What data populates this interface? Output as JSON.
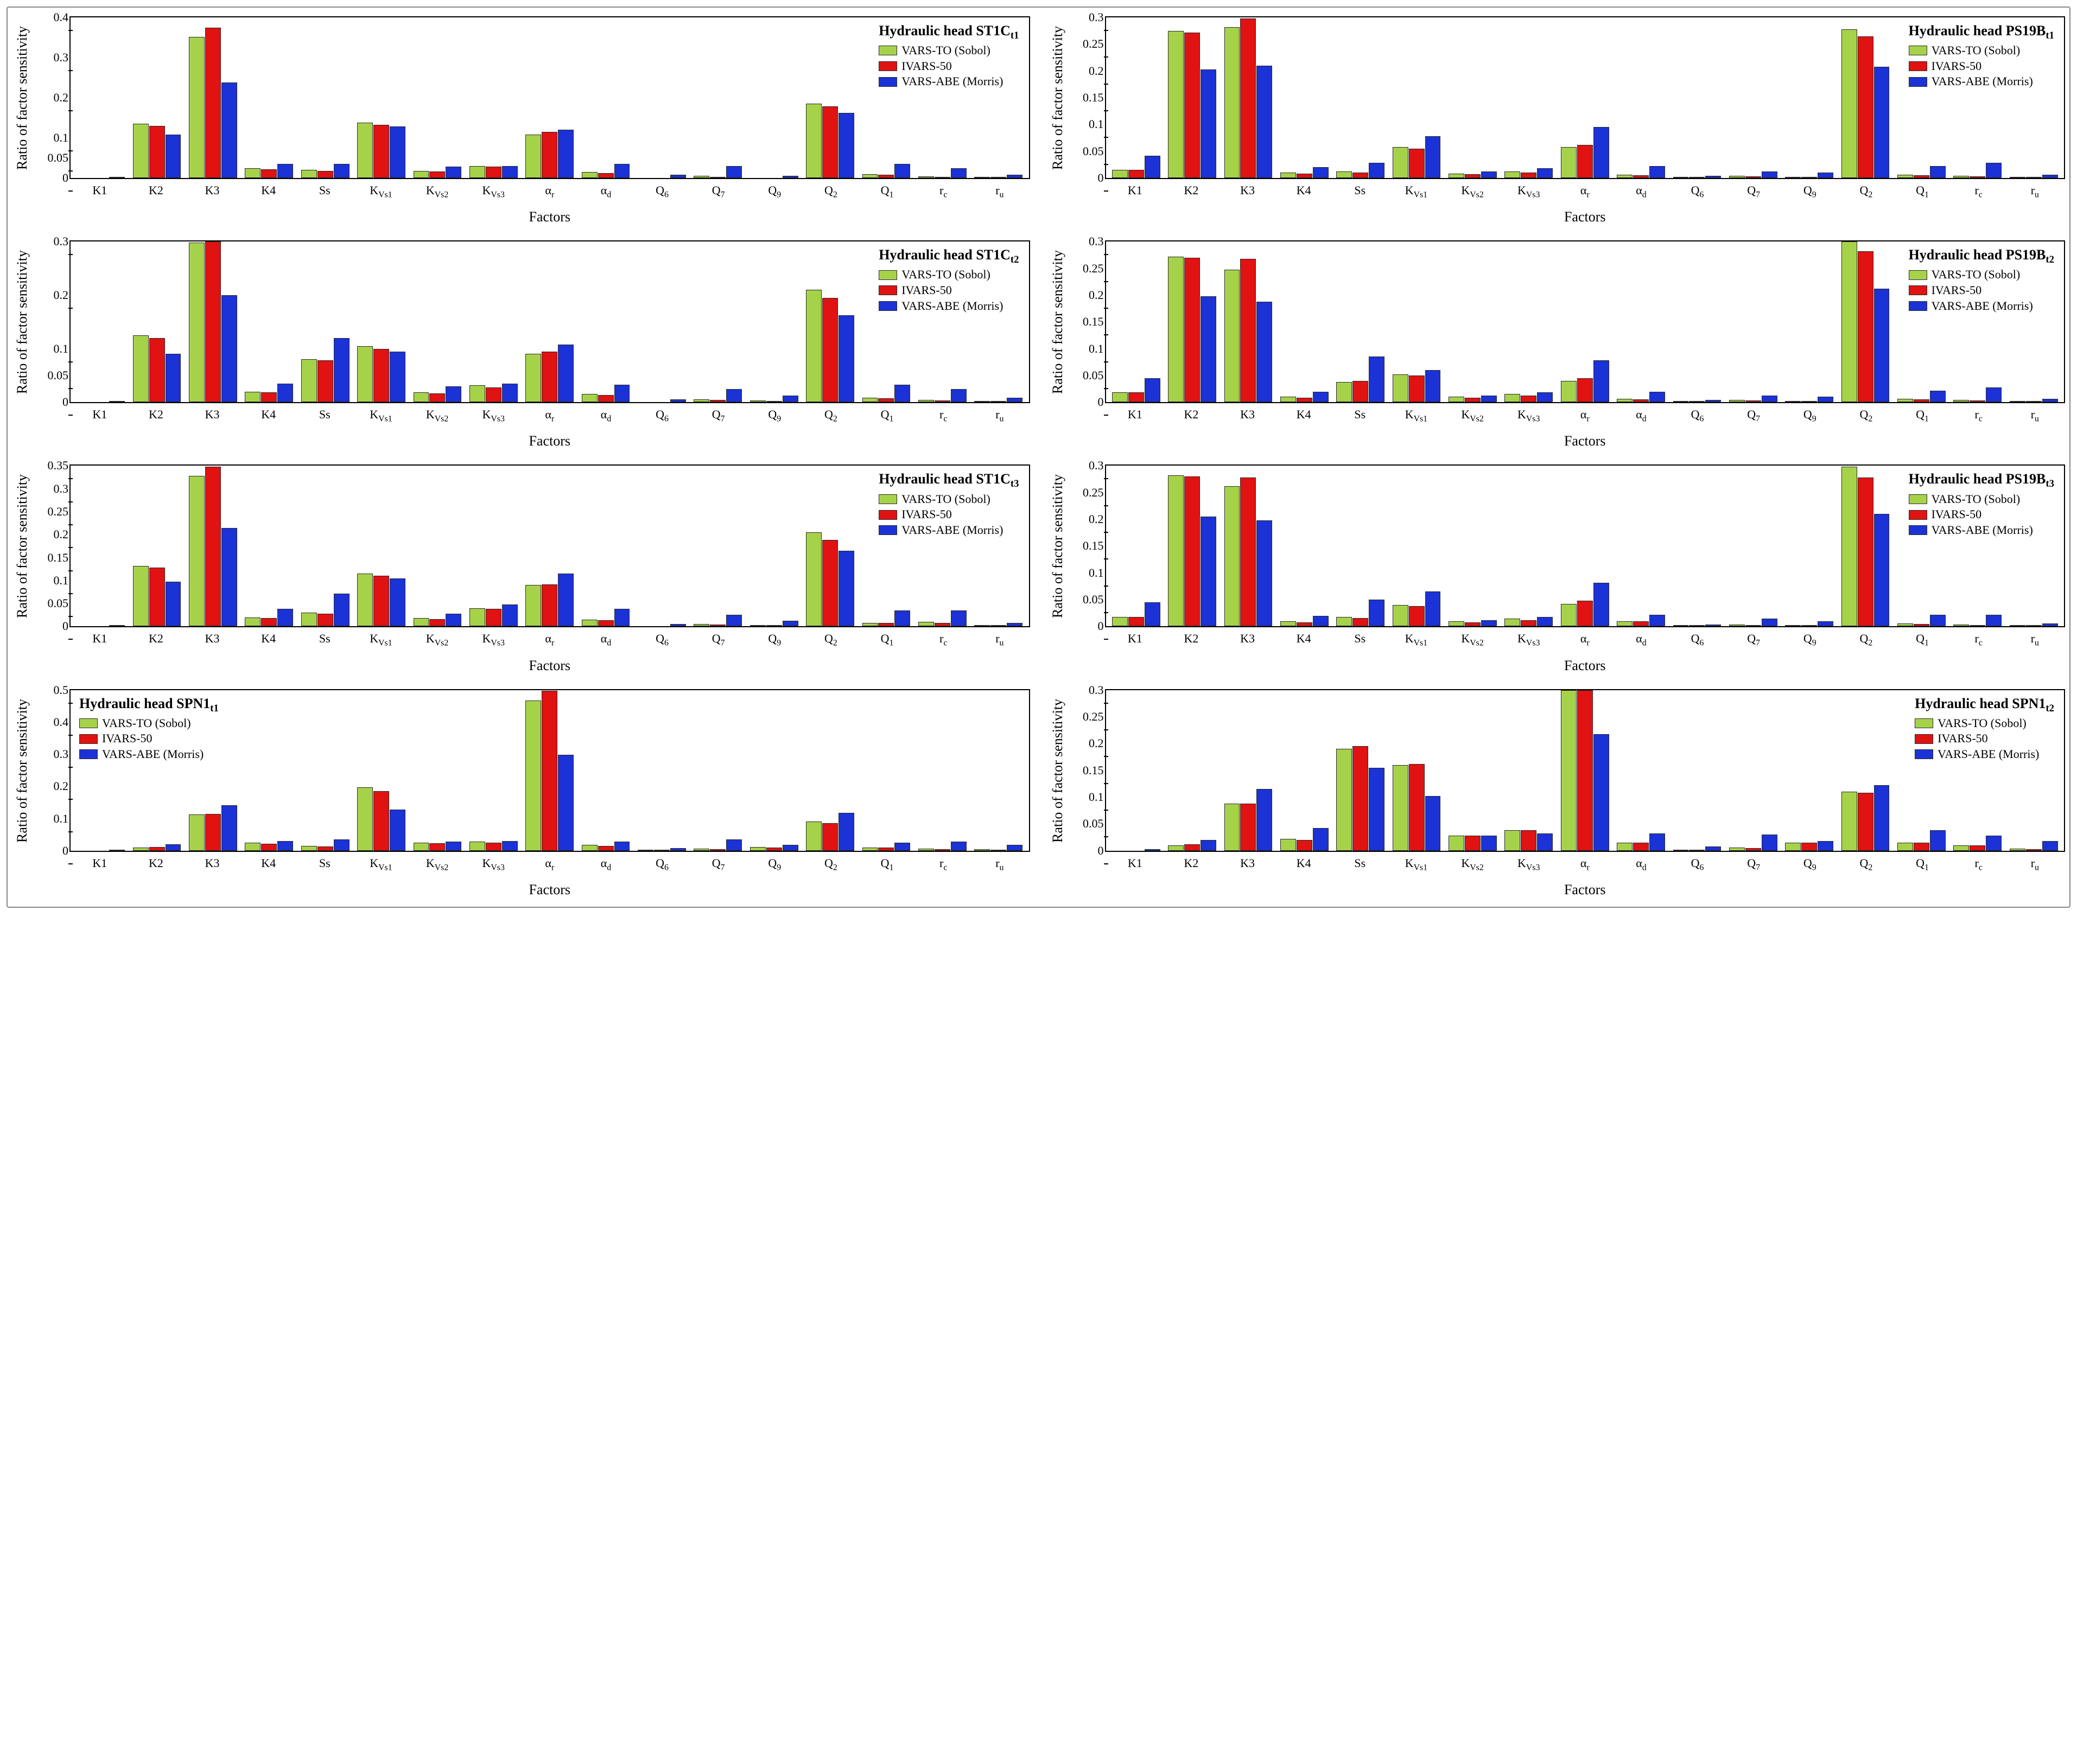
{
  "figure": {
    "border_color": "#888888",
    "background_color": "#ffffff"
  },
  "series_colors": {
    "vars_to": "#a6d24a",
    "ivars_50": "#e01212",
    "vars_abe": "#1a32d6"
  },
  "series_labels": {
    "vars_to": "VARS-TO (Sobol)",
    "ivars_50": "IVARS-50",
    "vars_abe": "VARS-ABE (Morris)"
  },
  "axis_labels": {
    "y": "Ratio of factor sensitivity",
    "x": "Factors"
  },
  "typography": {
    "axis_label_fontsize": 26,
    "tick_fontsize": 22,
    "legend_title_fontsize": 26,
    "legend_item_fontsize": 22,
    "font_family": "Times New Roman"
  },
  "categories": [
    "K1",
    "K2",
    "K3",
    "K4",
    "Ss",
    "K_Vs1",
    "K_Vs2",
    "K_Vs3",
    "α_r",
    "α_d",
    "Q_6",
    "Q_7",
    "Q_9",
    "Q_2",
    "Q_1",
    "r_c",
    "r_u"
  ],
  "categories_display": [
    "K1",
    "K2",
    "K3",
    "K4",
    "Ss",
    "K<sub>Vs1</sub>",
    "K<sub>Vs2</sub>",
    "K<sub>Vs3</sub>",
    "α<sub>r</sub>",
    "α<sub>d</sub>",
    "Q<sub>6</sub>",
    "Q<sub>7</sub>",
    "Q<sub>9</sub>",
    "Q<sub>2</sub>",
    "Q<sub>1</sub>",
    "r<sub>c</sub>",
    "r<sub>u</sub>"
  ],
  "panels": [
    {
      "id": "st1c_t1",
      "title_html": "Hydraulic head ST1C<sub>t1</sub>",
      "legend_pos": "top-right",
      "ylim": [
        0,
        0.4
      ],
      "yticks": [
        0,
        0.05,
        0.1,
        0.2,
        0.3,
        0.4
      ],
      "values": {
        "vars_to": [
          0.0,
          0.135,
          0.352,
          0.025,
          0.02,
          0.138,
          0.018,
          0.03,
          0.108,
          0.015,
          0.0,
          0.005,
          0.0,
          0.185,
          0.01,
          0.004,
          0.002
        ],
        "ivars_50": [
          0.0,
          0.13,
          0.375,
          0.022,
          0.018,
          0.132,
          0.016,
          0.028,
          0.115,
          0.012,
          0.0,
          0.003,
          0.0,
          0.178,
          0.008,
          0.003,
          0.002
        ],
        "vars_abe": [
          0.002,
          0.108,
          0.238,
          0.035,
          0.035,
          0.128,
          0.028,
          0.03,
          0.12,
          0.035,
          0.008,
          0.03,
          0.006,
          0.162,
          0.035,
          0.025,
          0.008
        ]
      }
    },
    {
      "id": "ps19b_t1",
      "title_html": "Hydraulic head PS19B<sub>t1</sub>",
      "legend_pos": "top-right",
      "ylim": [
        0,
        0.3
      ],
      "yticks": [
        0,
        0.05,
        0.1,
        0.15,
        0.2,
        0.25,
        0.3
      ],
      "values": {
        "vars_to": [
          0.015,
          0.275,
          0.282,
          0.01,
          0.012,
          0.058,
          0.008,
          0.012,
          0.058,
          0.006,
          0.002,
          0.004,
          0.002,
          0.278,
          0.006,
          0.004,
          0.002
        ],
        "ivars_50": [
          0.015,
          0.272,
          0.298,
          0.008,
          0.01,
          0.055,
          0.007,
          0.01,
          0.062,
          0.005,
          0.002,
          0.003,
          0.002,
          0.265,
          0.005,
          0.003,
          0.002
        ],
        "vars_abe": [
          0.042,
          0.203,
          0.21,
          0.02,
          0.028,
          0.078,
          0.012,
          0.018,
          0.095,
          0.022,
          0.004,
          0.012,
          0.01,
          0.208,
          0.022,
          0.028,
          0.006
        ]
      }
    },
    {
      "id": "st1c_t2",
      "title_html": "Hydraulic head ST1C<sub>t2</sub>",
      "legend_pos": "top-right",
      "ylim": [
        0,
        0.3
      ],
      "yticks": [
        0,
        0.05,
        0.1,
        0.2,
        0.3
      ],
      "values": {
        "vars_to": [
          0.0,
          0.125,
          0.298,
          0.02,
          0.08,
          0.105,
          0.018,
          0.032,
          0.09,
          0.015,
          0.0,
          0.005,
          0.003,
          0.21,
          0.008,
          0.004,
          0.002
        ],
        "ivars_50": [
          0.0,
          0.12,
          0.322,
          0.018,
          0.078,
          0.1,
          0.016,
          0.028,
          0.095,
          0.013,
          0.0,
          0.004,
          0.002,
          0.195,
          0.007,
          0.003,
          0.002
        ],
        "vars_abe": [
          0.002,
          0.09,
          0.2,
          0.035,
          0.12,
          0.095,
          0.03,
          0.035,
          0.108,
          0.033,
          0.005,
          0.025,
          0.012,
          0.162,
          0.033,
          0.025,
          0.008
        ]
      }
    },
    {
      "id": "ps19b_t2",
      "title_html": "Hydraulic head PS19B<sub>t2</sub>",
      "legend_pos": "top-right",
      "ylim": [
        0,
        0.3
      ],
      "yticks": [
        0,
        0.05,
        0.1,
        0.15,
        0.2,
        0.25,
        0.3
      ],
      "values": {
        "vars_to": [
          0.018,
          0.272,
          0.248,
          0.01,
          0.038,
          0.052,
          0.01,
          0.015,
          0.04,
          0.006,
          0.002,
          0.004,
          0.002,
          0.302,
          0.006,
          0.004,
          0.002
        ],
        "ivars_50": [
          0.018,
          0.27,
          0.268,
          0.008,
          0.04,
          0.05,
          0.008,
          0.012,
          0.045,
          0.005,
          0.002,
          0.003,
          0.002,
          0.282,
          0.005,
          0.003,
          0.002
        ],
        "vars_abe": [
          0.045,
          0.198,
          0.188,
          0.02,
          0.085,
          0.06,
          0.012,
          0.018,
          0.078,
          0.02,
          0.004,
          0.012,
          0.01,
          0.212,
          0.022,
          0.028,
          0.006
        ]
      }
    },
    {
      "id": "st1c_t3",
      "title_html": "Hydraulic head ST1C<sub>t3</sub>",
      "legend_pos": "top-right",
      "ylim": [
        0,
        0.35
      ],
      "yticks": [
        0,
        0.05,
        0.1,
        0.15,
        0.2,
        0.25,
        0.3,
        0.35
      ],
      "values": {
        "vars_to": [
          0.0,
          0.132,
          0.328,
          0.02,
          0.03,
          0.115,
          0.018,
          0.04,
          0.09,
          0.015,
          0.0,
          0.005,
          0.003,
          0.205,
          0.008,
          0.01,
          0.002
        ],
        "ivars_50": [
          0.0,
          0.128,
          0.348,
          0.018,
          0.028,
          0.11,
          0.016,
          0.038,
          0.092,
          0.013,
          0.0,
          0.004,
          0.002,
          0.188,
          0.008,
          0.008,
          0.002
        ],
        "vars_abe": [
          0.002,
          0.098,
          0.215,
          0.038,
          0.072,
          0.105,
          0.028,
          0.048,
          0.115,
          0.038,
          0.005,
          0.025,
          0.012,
          0.165,
          0.035,
          0.035,
          0.008
        ]
      }
    },
    {
      "id": "ps19b_t3",
      "title_html": "Hydraulic head PS19B<sub>t3</sub>",
      "legend_pos": "top-right",
      "ylim": [
        0,
        0.3
      ],
      "yticks": [
        0,
        0.05,
        0.1,
        0.15,
        0.2,
        0.25,
        0.3
      ],
      "values": {
        "vars_to": [
          0.018,
          0.282,
          0.262,
          0.01,
          0.018,
          0.04,
          0.01,
          0.015,
          0.042,
          0.01,
          0.002,
          0.004,
          0.002,
          0.298,
          0.006,
          0.004,
          0.002
        ],
        "ivars_50": [
          0.018,
          0.28,
          0.278,
          0.008,
          0.016,
          0.038,
          0.008,
          0.012,
          0.048,
          0.01,
          0.002,
          0.003,
          0.002,
          0.278,
          0.005,
          0.003,
          0.002
        ],
        "vars_abe": [
          0.045,
          0.205,
          0.198,
          0.02,
          0.05,
          0.065,
          0.012,
          0.018,
          0.082,
          0.022,
          0.004,
          0.015,
          0.01,
          0.21,
          0.022,
          0.022,
          0.006
        ]
      }
    },
    {
      "id": "spn1_t1",
      "title_html": "Hydraulic head SPN1<sub>t1</sub>",
      "legend_pos": "top-left",
      "ylim": [
        0,
        0.5
      ],
      "yticks": [
        0,
        0.1,
        0.2,
        0.3,
        0.4,
        0.5
      ],
      "values": {
        "vars_to": [
          0.0,
          0.01,
          0.112,
          0.025,
          0.015,
          0.198,
          0.025,
          0.028,
          0.468,
          0.018,
          0.002,
          0.006,
          0.012,
          0.09,
          0.01,
          0.006,
          0.004
        ],
        "ivars_50": [
          0.0,
          0.012,
          0.115,
          0.022,
          0.013,
          0.185,
          0.023,
          0.025,
          0.498,
          0.015,
          0.002,
          0.005,
          0.01,
          0.085,
          0.01,
          0.005,
          0.003
        ],
        "vars_abe": [
          0.003,
          0.02,
          0.142,
          0.03,
          0.035,
          0.128,
          0.028,
          0.03,
          0.298,
          0.028,
          0.008,
          0.035,
          0.018,
          0.118,
          0.025,
          0.028,
          0.018
        ]
      }
    },
    {
      "id": "spn1_t2",
      "title_html": "Hydraulic head SPN1<sub>t2</sub>",
      "legend_pos": "top-right",
      "ylim": [
        0,
        0.3
      ],
      "yticks": [
        0,
        0.05,
        0.1,
        0.15,
        0.2,
        0.25,
        0.3
      ],
      "values": {
        "vars_to": [
          0.0,
          0.01,
          0.088,
          0.022,
          0.19,
          0.16,
          0.028,
          0.038,
          0.308,
          0.015,
          0.002,
          0.006,
          0.015,
          0.11,
          0.015,
          0.01,
          0.004
        ],
        "ivars_50": [
          0.0,
          0.012,
          0.088,
          0.02,
          0.195,
          0.162,
          0.028,
          0.038,
          0.31,
          0.015,
          0.002,
          0.005,
          0.015,
          0.108,
          0.015,
          0.01,
          0.003
        ],
        "vars_abe": [
          0.003,
          0.02,
          0.115,
          0.042,
          0.155,
          0.102,
          0.028,
          0.032,
          0.218,
          0.032,
          0.008,
          0.03,
          0.018,
          0.122,
          0.038,
          0.028,
          0.018
        ]
      }
    }
  ]
}
